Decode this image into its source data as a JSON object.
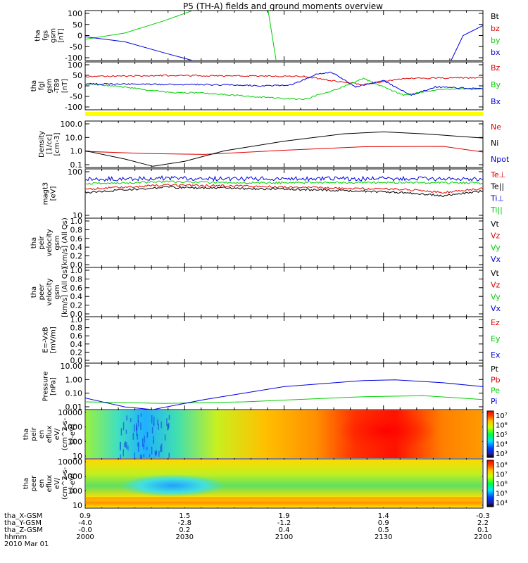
{
  "title": "P5 (TH-A) fields and ground moments overview",
  "colors": {
    "black": "#000000",
    "red": "#e00000",
    "green": "#00d000",
    "blue": "#0000e0",
    "yellow": "#ffff00"
  },
  "x_axis": {
    "row_labels": [
      "tha_X-GSM",
      "tha_Y-GSM",
      "tha_Z-GSM",
      "hhmm",
      "2010 Mar 01"
    ],
    "ticks": [
      {
        "vals": [
          "0.9",
          "-4.0",
          "-0.0",
          "2000"
        ]
      },
      {
        "vals": [
          "1.5",
          "-2.8",
          "0.2",
          "2030"
        ]
      },
      {
        "vals": [
          "1.9",
          "-1.2",
          "0.4",
          "2100"
        ]
      },
      {
        "vals": [
          "1.4",
          "0.9",
          "0.5",
          "2130"
        ]
      },
      {
        "vals": [
          "-0.3",
          "2.2",
          "0.1",
          "2200"
        ]
      }
    ]
  },
  "panels": [
    {
      "id": "fgs",
      "ylabel": [
        "tha",
        "fgs",
        "gsm",
        "[nT]"
      ],
      "yticks": [
        "100",
        "50",
        "0",
        "-50",
        "-100"
      ],
      "legend": [
        {
          "text": "Bt",
          "color": "black"
        },
        {
          "text": "bz",
          "color": "red"
        },
        {
          "text": "by",
          "color": "green"
        },
        {
          "text": "bx",
          "color": "blue"
        }
      ]
    },
    {
      "id": "fgl",
      "ylabel": [
        "tha",
        "fgl",
        "gsm",
        "-T89",
        "[nT]"
      ],
      "yticks": [
        "100",
        "50",
        "0",
        "-50",
        "-100"
      ],
      "legend": [
        {
          "text": "Bz",
          "color": "red"
        },
        {
          "text": "By",
          "color": "green"
        },
        {
          "text": "Bx",
          "color": "blue"
        }
      ]
    },
    {
      "id": "density",
      "ylabel": [
        "Density",
        "[1/cc]",
        "[cm-3]"
      ],
      "yticks": [
        "100.0",
        "10.0",
        "1.0",
        "0.1"
      ],
      "legend": [
        {
          "text": "Ne",
          "color": "red"
        },
        {
          "text": "Ni",
          "color": "black"
        },
        {
          "text": "Npot",
          "color": "blue"
        }
      ]
    },
    {
      "id": "temp",
      "ylabel": [
        "magt3",
        "[eV]"
      ],
      "yticks": [
        "100",
        "10"
      ],
      "legend": [
        {
          "text": "Te⊥",
          "color": "red"
        },
        {
          "text": "Te||",
          "color": "black"
        },
        {
          "text": "Ti⊥",
          "color": "blue"
        },
        {
          "text": "Ti||",
          "color": "green"
        }
      ]
    },
    {
      "id": "peir_vel",
      "ylabel": [
        "tha",
        "peir",
        "velocity",
        "gsm",
        "[km/s] (All Qs)"
      ],
      "yticks": [
        "1.0",
        "0.8",
        "0.6",
        "0.4",
        "0.2",
        "0.0"
      ],
      "legend": [
        {
          "text": "Vt",
          "color": "black"
        },
        {
          "text": "Vz",
          "color": "red"
        },
        {
          "text": "Vy",
          "color": "green"
        },
        {
          "text": "Vx",
          "color": "blue"
        }
      ]
    },
    {
      "id": "peer_vel",
      "ylabel": [
        "tha",
        "peer",
        "velocity",
        "gsm",
        "[km/s] (All Qs)"
      ],
      "yticks": [
        "1.0",
        "0.8",
        "0.6",
        "0.4",
        "0.2",
        "0.0"
      ],
      "legend": [
        {
          "text": "Vt",
          "color": "black"
        },
        {
          "text": "Vz",
          "color": "red"
        },
        {
          "text": "Vy",
          "color": "green"
        },
        {
          "text": "Vx",
          "color": "blue"
        }
      ]
    },
    {
      "id": "efield",
      "ylabel": [
        "E=-VxB",
        "[mV/m]"
      ],
      "yticks": [
        "1.0",
        "0.8",
        "0.6",
        "0.4",
        "0.2",
        "0.0"
      ],
      "legend": [
        {
          "text": "Ez",
          "color": "red"
        },
        {
          "text": "Ey",
          "color": "green"
        },
        {
          "text": "Ex",
          "color": "blue"
        }
      ]
    },
    {
      "id": "pressure",
      "ylabel": [
        "Pressure",
        "[nPa]"
      ],
      "yticks": [
        "10.00",
        "1.00",
        "0.10",
        "0.01"
      ],
      "legend": [
        {
          "text": "Pt",
          "color": "black"
        },
        {
          "text": "Pb",
          "color": "red"
        },
        {
          "text": "Pe",
          "color": "green"
        },
        {
          "text": "Pi",
          "color": "blue"
        }
      ]
    },
    {
      "id": "peir_spec",
      "ylabel": [
        "tha",
        "peir",
        "en",
        "eflux",
        "eV/",
        "(cm^2-s-",
        "sr-eV)"
      ],
      "yticks": [
        "10000",
        "1000",
        "100",
        "10"
      ],
      "colorbar": [
        "10⁷",
        "10⁶",
        "10⁵",
        "10⁴",
        "10³"
      ]
    },
    {
      "id": "peer_spec",
      "ylabel": [
        "tha",
        "peer",
        "en",
        "eflux",
        "eV/",
        "(cm^2-s-",
        "sr-eV)"
      ],
      "yticks": [
        "10000",
        "1000",
        "100",
        "10"
      ],
      "colorbar": [
        "10⁸",
        "10⁷",
        "10⁶",
        "10⁵",
        "10⁴"
      ]
    }
  ],
  "chart_data": [
    {
      "type": "line",
      "title": "P5 (TH-A) fields and ground moments overview",
      "ylabel": "tha fgs gsm [nT]",
      "ylim": [
        -100,
        100
      ],
      "x": [
        "2000",
        "2030",
        "2100",
        "2130",
        "2200"
      ],
      "series": [
        {
          "name": "by",
          "color": "green",
          "points": [
            [
              0,
              -15
            ],
            [
              0.1,
              10
            ],
            [
              0.2,
              60
            ],
            [
              0.27,
              100
            ]
          ]
        },
        {
          "name": "by",
          "color": "green",
          "points": [
            [
              0.46,
              100
            ],
            [
              0.48,
              -100
            ]
          ]
        },
        {
          "name": "bx",
          "color": "blue",
          "points": [
            [
              0,
              -5
            ],
            [
              0.1,
              -25
            ],
            [
              0.2,
              -70
            ],
            [
              0.27,
              -100
            ]
          ]
        },
        {
          "name": "bx",
          "color": "blue",
          "points": [
            [
              0.92,
              -100
            ],
            [
              0.95,
              0
            ],
            [
              1,
              40
            ]
          ]
        }
      ]
    },
    {
      "type": "line",
      "ylabel": "tha fgl gsm -T89 [nT]",
      "ylim": [
        -130,
        100
      ],
      "x": [
        "2000",
        "2030",
        "2100",
        "2130",
        "2200"
      ],
      "series": [
        {
          "name": "Bz",
          "color": "red",
          "points": [
            [
              0,
              30
            ],
            [
              0.2,
              35
            ],
            [
              0.4,
              33
            ],
            [
              0.55,
              30
            ],
            [
              0.62,
              10
            ],
            [
              0.7,
              -10
            ],
            [
              0.8,
              20
            ],
            [
              1,
              25
            ]
          ]
        },
        {
          "name": "By",
          "color": "green",
          "points": [
            [
              0,
              -5
            ],
            [
              0.1,
              -20
            ],
            [
              0.2,
              -45
            ],
            [
              0.3,
              -50
            ],
            [
              0.45,
              -70
            ],
            [
              0.55,
              -80
            ],
            [
              0.62,
              -40
            ],
            [
              0.7,
              20
            ],
            [
              0.8,
              -60
            ],
            [
              0.9,
              -30
            ],
            [
              1,
              -30
            ]
          ]
        },
        {
          "name": "Bx",
          "color": "blue",
          "points": [
            [
              0,
              -5
            ],
            [
              0.2,
              -8
            ],
            [
              0.35,
              -10
            ],
            [
              0.45,
              -15
            ],
            [
              0.52,
              -10
            ],
            [
              0.58,
              40
            ],
            [
              0.62,
              50
            ],
            [
              0.68,
              -20
            ],
            [
              0.75,
              10
            ],
            [
              0.82,
              -60
            ],
            [
              0.88,
              -20
            ],
            [
              0.95,
              -25
            ],
            [
              1,
              -30
            ]
          ]
        }
      ]
    },
    {
      "type": "line",
      "ylabel": "Density [1/cc]",
      "ylim": [
        0.1,
        100
      ],
      "log": true,
      "x": [
        "2000",
        "2030",
        "2100",
        "2130",
        "2200"
      ],
      "series": [
        {
          "name": "Ne",
          "color": "red",
          "points": [
            [
              0,
              1.1
            ],
            [
              0.15,
              0.8
            ],
            [
              0.3,
              0.7
            ],
            [
              0.5,
              1.3
            ],
            [
              0.7,
              2.2
            ],
            [
              0.9,
              2.3
            ],
            [
              1,
              1.0
            ]
          ]
        },
        {
          "name": "Ni",
          "color": "black",
          "points": [
            [
              0,
              1.2
            ],
            [
              0.1,
              0.35
            ],
            [
              0.17,
              0.12
            ],
            [
              0.25,
              0.25
            ],
            [
              0.35,
              1.2
            ],
            [
              0.5,
              5
            ],
            [
              0.65,
              15
            ],
            [
              0.75,
              20
            ],
            [
              0.85,
              15
            ],
            [
              1,
              8
            ]
          ]
        }
      ]
    },
    {
      "type": "line",
      "ylabel": "magt3 [eV]",
      "ylim": [
        10,
        1000
      ],
      "log": true,
      "x": [
        "2000",
        "2030",
        "2100",
        "2130",
        "2200"
      ],
      "series": [
        {
          "name": "Te⊥",
          "color": "red",
          "points": [
            [
              0,
              150
            ],
            [
              0.2,
              220
            ],
            [
              0.4,
              200
            ],
            [
              0.6,
              170
            ],
            [
              0.8,
              150
            ],
            [
              0.9,
              110
            ],
            [
              1,
              160
            ]
          ]
        },
        {
          "name": "Te||",
          "color": "black",
          "points": [
            [
              0,
              110
            ],
            [
              0.2,
              180
            ],
            [
              0.4,
              160
            ],
            [
              0.6,
              140
            ],
            [
              0.8,
              110
            ],
            [
              0.9,
              80
            ],
            [
              1,
              130
            ]
          ]
        },
        {
          "name": "Ti⊥",
          "color": "blue",
          "points": [
            [
              0,
              380
            ],
            [
              0.2,
              420
            ],
            [
              0.4,
              400
            ],
            [
              0.6,
              400
            ],
            [
              0.8,
              400
            ],
            [
              1,
              380
            ]
          ]
        },
        {
          "name": "Ti||",
          "color": "green",
          "points": [
            [
              0,
              250
            ],
            [
              0.2,
              300
            ],
            [
              0.4,
              270
            ],
            [
              0.6,
              280
            ],
            [
              0.8,
              280
            ],
            [
              1,
              270
            ]
          ]
        }
      ]
    },
    {
      "type": "line",
      "ylabel": "Pressure [nPa]",
      "ylim": [
        0.005,
        20
      ],
      "log": true,
      "x": [
        "2000",
        "2030",
        "2100",
        "2130",
        "2200"
      ],
      "series": [
        {
          "name": "Pe",
          "color": "green",
          "points": [
            [
              0,
              0.02
            ],
            [
              0.2,
              0.015
            ],
            [
              0.4,
              0.02
            ],
            [
              0.7,
              0.05
            ],
            [
              0.85,
              0.06
            ],
            [
              1,
              0.03
            ]
          ]
        },
        {
          "name": "Pi",
          "color": "blue",
          "points": [
            [
              0,
              0.04
            ],
            [
              0.1,
              0.008
            ],
            [
              0.17,
              0.005
            ],
            [
              0.3,
              0.03
            ],
            [
              0.5,
              0.3
            ],
            [
              0.7,
              0.9
            ],
            [
              0.78,
              1.0
            ],
            [
              0.9,
              0.6
            ],
            [
              1,
              0.3
            ]
          ]
        }
      ]
    },
    {
      "type": "heatmap",
      "ylabel": "tha peir en eflux",
      "ylim": [
        5,
        30000
      ]
    },
    {
      "type": "heatmap",
      "ylabel": "tha peer en eflux",
      "ylim": [
        5,
        30000
      ]
    }
  ]
}
